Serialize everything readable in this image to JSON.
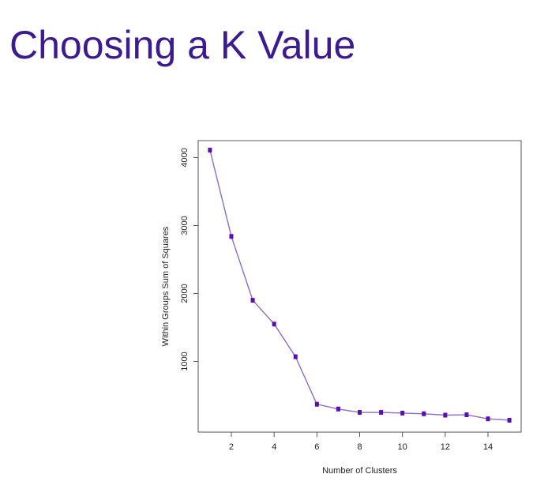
{
  "slide": {
    "title": "Choosing a K Value"
  },
  "colors": {
    "title": "#3c1a8f",
    "line": "#8a6fc2",
    "point": "#5a0fb0",
    "axis": "#555555"
  },
  "chart_data": {
    "type": "line",
    "title": "",
    "xlabel": "Number of Clusters",
    "ylabel": "Within Groups Sum of Squares",
    "x": [
      1,
      2,
      3,
      4,
      5,
      6,
      7,
      8,
      9,
      10,
      11,
      12,
      13,
      14,
      15
    ],
    "series": [
      {
        "values": [
          4110,
          2840,
          1900,
          1550,
          1070,
          370,
          300,
          250,
          250,
          240,
          230,
          210,
          215,
          155,
          135
        ]
      }
    ],
    "xlim": [
      0.45,
      15.55
    ],
    "ylim": [
      -40,
      4250
    ],
    "xticks": [
      2,
      4,
      6,
      8,
      10,
      12,
      14
    ],
    "yticks": [
      1000,
      2000,
      3000,
      4000
    ],
    "grid": false,
    "marker": "filled-square"
  }
}
